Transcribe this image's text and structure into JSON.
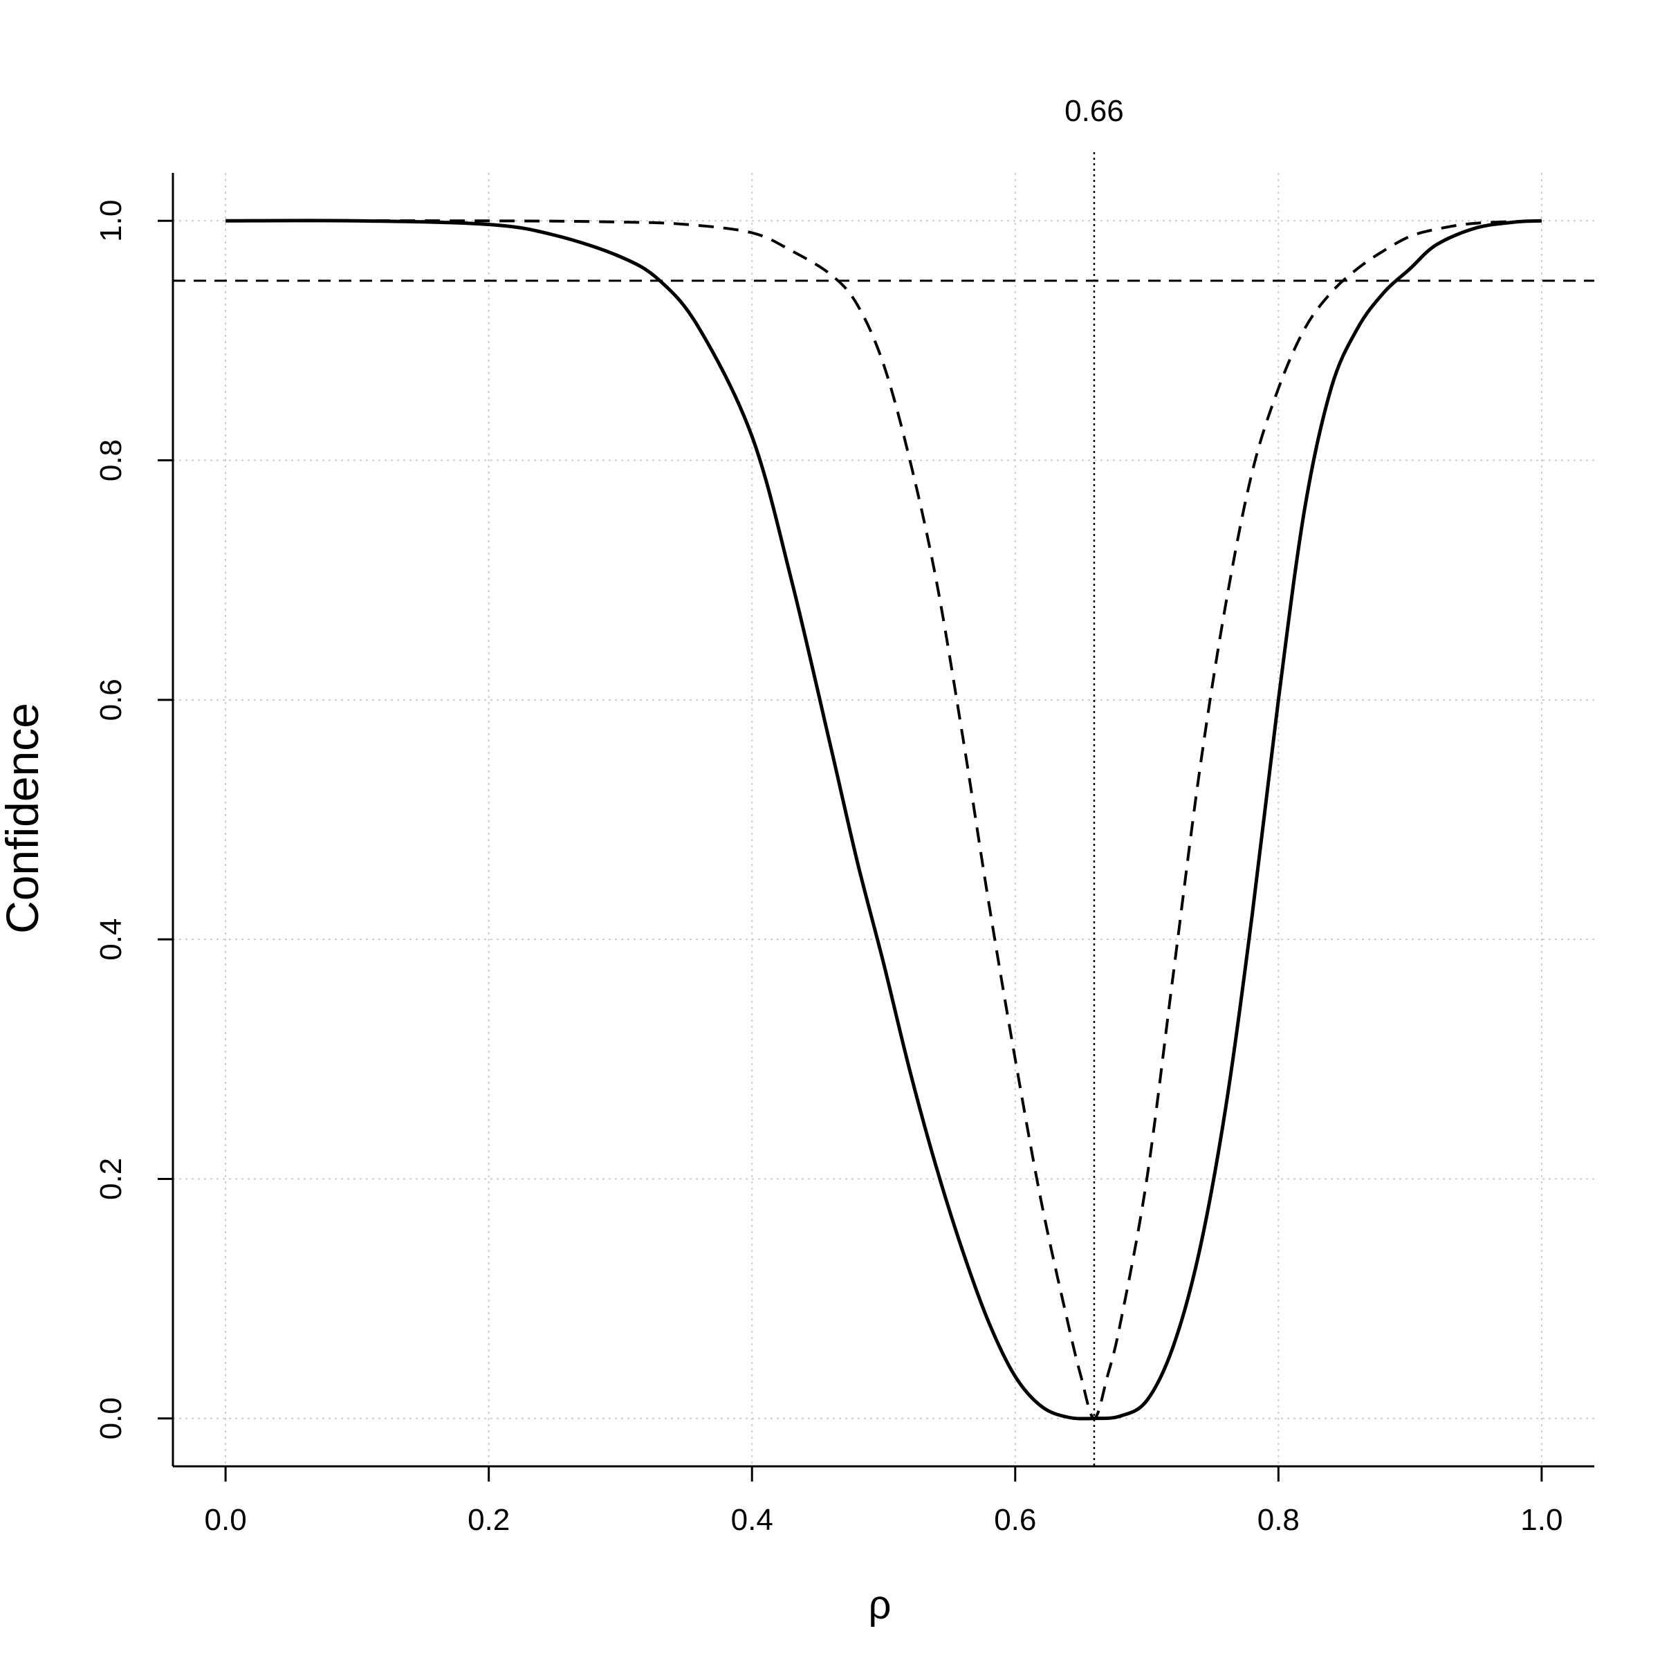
{
  "chart_data": {
    "type": "line",
    "title": "",
    "xlabel": "ρ",
    "ylabel": "Confidence",
    "xlim": [
      -0.04,
      1.04
    ],
    "ylim": [
      -0.04,
      1.04
    ],
    "xticks": [
      0.0,
      0.2,
      0.4,
      0.6,
      0.8,
      1.0
    ],
    "xtick_labels": [
      "0.0",
      "0.2",
      "0.4",
      "0.6",
      "0.8",
      "1.0"
    ],
    "yticks": [
      0.0,
      0.2,
      0.4,
      0.6,
      0.8,
      1.0
    ],
    "ytick_labels": [
      "0.0",
      "0.2",
      "0.4",
      "0.6",
      "0.8",
      "1.0"
    ],
    "grid": true,
    "reference_lines": {
      "horizontal": {
        "y": 0.95,
        "style": "dashed"
      },
      "vertical": {
        "x": 0.66,
        "style": "dotted",
        "label": "0.66"
      }
    },
    "series": [
      {
        "style": "solid",
        "color": "#000000",
        "x": [
          0.0,
          0.1,
          0.2,
          0.25,
          0.3,
          0.33,
          0.36,
          0.4,
          0.43,
          0.46,
          0.48,
          0.5,
          0.52,
          0.54,
          0.56,
          0.58,
          0.6,
          0.62,
          0.64,
          0.66,
          0.68,
          0.7,
          0.72,
          0.74,
          0.76,
          0.78,
          0.8,
          0.82,
          0.84,
          0.86,
          0.88,
          0.9,
          0.92,
          0.95,
          0.98,
          1.0
        ],
        "y": [
          1.0,
          1.0,
          0.997,
          0.988,
          0.97,
          0.95,
          0.91,
          0.82,
          0.7,
          0.56,
          0.465,
          0.38,
          0.29,
          0.21,
          0.14,
          0.08,
          0.035,
          0.01,
          0.001,
          0.0,
          0.002,
          0.015,
          0.06,
          0.14,
          0.26,
          0.42,
          0.6,
          0.76,
          0.86,
          0.91,
          0.94,
          0.96,
          0.98,
          0.994,
          0.999,
          1.0
        ]
      },
      {
        "style": "dashed",
        "color": "#000000",
        "x": [
          0.0,
          0.2,
          0.3,
          0.35,
          0.4,
          0.43,
          0.46,
          0.48,
          0.5,
          0.52,
          0.54,
          0.56,
          0.58,
          0.6,
          0.62,
          0.64,
          0.65,
          0.66,
          0.67,
          0.68,
          0.7,
          0.72,
          0.74,
          0.76,
          0.78,
          0.8,
          0.82,
          0.84,
          0.86,
          0.88,
          0.9,
          0.92,
          0.95,
          1.0
        ],
        "y": [
          1.0,
          1.0,
          0.999,
          0.997,
          0.99,
          0.975,
          0.955,
          0.93,
          0.88,
          0.8,
          0.7,
          0.57,
          0.43,
          0.3,
          0.18,
          0.08,
          0.035,
          0.0,
          0.035,
          0.08,
          0.2,
          0.37,
          0.54,
          0.68,
          0.79,
          0.86,
          0.91,
          0.94,
          0.96,
          0.975,
          0.987,
          0.993,
          0.998,
          1.0
        ]
      }
    ]
  }
}
